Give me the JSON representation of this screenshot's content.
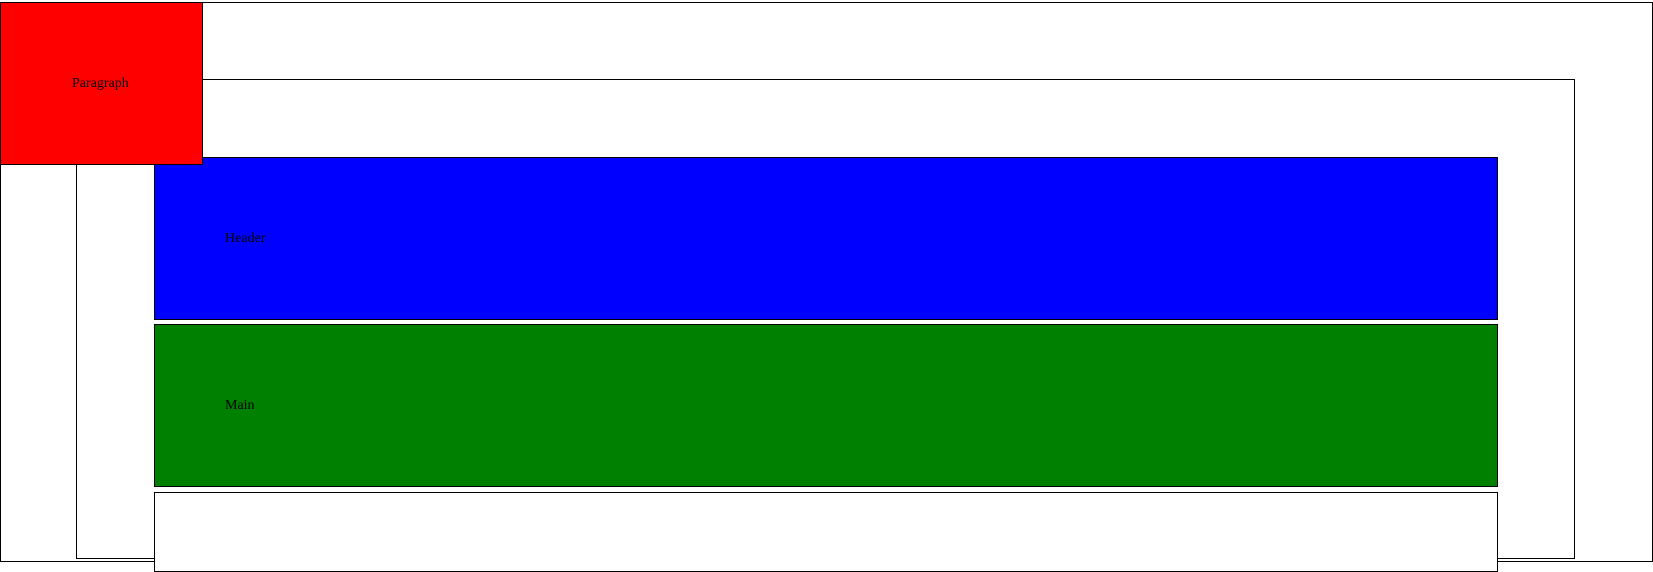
{
  "blocks": {
    "paragraph": {
      "label": "Paragraph",
      "color": "#ff0000"
    },
    "header": {
      "label": "Header",
      "color": "#0000ff"
    },
    "main": {
      "label": "Main",
      "color": "#008000"
    },
    "footer": {
      "label": "",
      "color": "#ffffff"
    }
  },
  "colors": {
    "background": "#ffffff",
    "border": "#000000",
    "text": "#000000"
  }
}
